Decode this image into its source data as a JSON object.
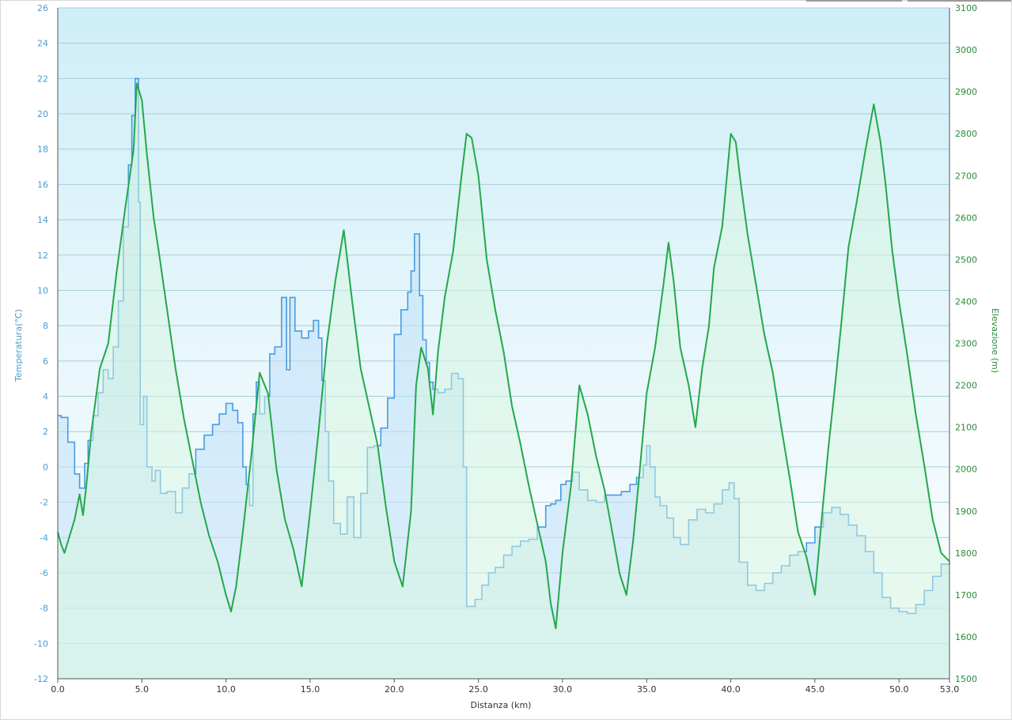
{
  "chart_data": {
    "type": "area",
    "xlabel": "Distanza  (km)",
    "ylabel_left": "Temperatura(°C)",
    "ylabel_right": "Elevazione (m)",
    "x_ticks": [
      "0.0",
      "5.0",
      "10.0",
      "15.0",
      "20.0",
      "25.0",
      "30.0",
      "35.0",
      "40.0",
      "45.0",
      "50.0",
      "53.0"
    ],
    "x_tick_values": [
      0,
      5,
      10,
      15,
      20,
      25,
      30,
      35,
      40,
      45,
      50,
      53
    ],
    "xlim": [
      0,
      53
    ],
    "ylim_left": [
      -12,
      26
    ],
    "ylim_right": [
      1500,
      3100
    ],
    "y_left_ticks": [
      "-12",
      "-10",
      "-8",
      "-6",
      "-4",
      "-2",
      "0",
      "2",
      "4",
      "6",
      "8",
      "10",
      "12",
      "14",
      "16",
      "18",
      "20",
      "22",
      "24",
      "26"
    ],
    "y_right_ticks": [
      "1500",
      "1600",
      "1700",
      "1800",
      "1900",
      "2000",
      "2100",
      "2200",
      "2300",
      "2400",
      "2500",
      "2600",
      "2700",
      "2800",
      "2900",
      "3000",
      "3100"
    ],
    "grid": true,
    "colors": {
      "temperature": "#4a9be0",
      "temperature_fill": "#bfe0f8",
      "elevation": "#22a84a",
      "elevation_fill": "#d6f5e0",
      "bg_top": "#cfeef8",
      "bg_bottom": "#ffffff",
      "left_axis_text": "#4a9bd0",
      "right_axis_text": "#2a8a3a"
    },
    "series": [
      {
        "axis": "left",
        "x": [
          0,
          0.2,
          0.6,
          1.0,
          1.3,
          1.6,
          1.8,
          2.1,
          2.4,
          2.7,
          3.0,
          3.3,
          3.6,
          3.9,
          4.2,
          4.4,
          4.6,
          4.8,
          4.9,
          5.1,
          5.3,
          5.6,
          5.8,
          6.1,
          6.5,
          7.0,
          7.4,
          7.8,
          8.2,
          8.7,
          9.2,
          9.6,
          10.0,
          10.4,
          10.7,
          11.0,
          11.2,
          11.4,
          11.6,
          11.8,
          12.0,
          12.3,
          12.6,
          12.9,
          13.3,
          13.6,
          13.8,
          14.1,
          14.5,
          14.9,
          15.2,
          15.5,
          15.7,
          15.9,
          16.1,
          16.4,
          16.8,
          17.2,
          17.6,
          18.0,
          18.4,
          18.8,
          19.2,
          19.6,
          20.0,
          20.4,
          20.8,
          21.0,
          21.2,
          21.5,
          21.7,
          21.9,
          22.1,
          22.3,
          22.6,
          23.0,
          23.4,
          23.8,
          24.1,
          24.3,
          24.5,
          24.8,
          25.2,
          25.6,
          26.0,
          26.5,
          27.0,
          27.5,
          28.0,
          28.5,
          29.0,
          29.3,
          29.6,
          29.9,
          30.2,
          30.6,
          31.0,
          31.5,
          32.0,
          32.5,
          33.0,
          33.5,
          34.0,
          34.4,
          34.8,
          35.0,
          35.2,
          35.5,
          35.8,
          36.2,
          36.6,
          37.0,
          37.5,
          38.0,
          38.5,
          39.0,
          39.5,
          39.9,
          40.2,
          40.5,
          41.0,
          41.5,
          42.0,
          42.5,
          43.0,
          43.5,
          44.0,
          44.5,
          45.0,
          45.5,
          46.0,
          46.5,
          47.0,
          47.5,
          48.0,
          48.5,
          49.0,
          49.5,
          50.0,
          50.5,
          51.0,
          51.5,
          52.0,
          52.5,
          53.0
        ],
        "values": [
          2.9,
          2.8,
          1.4,
          -0.4,
          -1.2,
          0.2,
          1.5,
          2.9,
          4.2,
          5.5,
          5.0,
          6.8,
          9.4,
          13.6,
          17.1,
          19.9,
          22.0,
          15.0,
          2.4,
          4.0,
          0.0,
          -0.8,
          -0.2,
          -1.5,
          -1.4,
          -2.6,
          -1.2,
          -0.4,
          1.0,
          1.8,
          2.4,
          3.0,
          3.6,
          3.2,
          2.5,
          0.0,
          -1.0,
          -2.2,
          3.0,
          4.8,
          3.0,
          4.0,
          6.4,
          6.8,
          9.6,
          5.5,
          9.6,
          7.7,
          7.3,
          7.7,
          8.3,
          7.3,
          4.9,
          2.0,
          -0.8,
          -3.2,
          -3.8,
          -1.7,
          -4.0,
          -1.5,
          1.1,
          1.2,
          2.2,
          3.9,
          7.5,
          8.9,
          9.9,
          11.1,
          13.2,
          9.7,
          7.2,
          5.9,
          4.8,
          4.4,
          4.2,
          4.4,
          5.3,
          5.0,
          0.0,
          -7.9,
          -7.9,
          -7.5,
          -6.7,
          -6.0,
          -5.7,
          -5.0,
          -4.5,
          -4.2,
          -4.1,
          -3.4,
          -2.2,
          -2.1,
          -1.9,
          -1.0,
          -0.8,
          -0.3,
          -1.3,
          -1.9,
          -2.0,
          -1.6,
          -1.6,
          -1.4,
          -1.0,
          -0.6,
          0.1,
          1.2,
          0.0,
          -1.7,
          -2.2,
          -2.9,
          -4.0,
          -4.4,
          -3.0,
          -2.4,
          -2.6,
          -2.1,
          -1.3,
          -0.9,
          -1.8,
          -5.4,
          -6.7,
          -7.0,
          -6.6,
          -6.0,
          -5.6,
          -5.0,
          -4.8,
          -4.3,
          -3.4,
          -2.6,
          -2.3,
          -2.7,
          -3.3,
          -3.9,
          -4.8,
          -6.0,
          -7.4,
          -8.0,
          -8.2,
          -8.3,
          -7.8,
          -7.0,
          -6.2,
          -5.5,
          -5.4
        ]
      },
      {
        "axis": "right",
        "x": [
          0,
          0.2,
          0.4,
          0.7,
          1.0,
          1.3,
          1.5,
          1.7,
          2.0,
          2.5,
          3.0,
          3.5,
          4.0,
          4.5,
          4.7,
          5.0,
          5.3,
          5.7,
          6.0,
          6.5,
          7.0,
          7.5,
          8.0,
          8.5,
          9.0,
          9.5,
          10.0,
          10.3,
          10.6,
          11.0,
          11.5,
          12.0,
          12.5,
          13.0,
          13.5,
          14.0,
          14.5,
          15.0,
          15.5,
          16.0,
          16.5,
          17.0,
          17.5,
          18.0,
          18.5,
          19.0,
          19.5,
          20.0,
          20.5,
          21.0,
          21.3,
          21.6,
          22.0,
          22.3,
          22.6,
          23.0,
          23.5,
          24.0,
          24.3,
          24.6,
          25.0,
          25.5,
          26.0,
          26.5,
          27.0,
          27.5,
          28.0,
          28.5,
          29.0,
          29.3,
          29.6,
          30.0,
          30.5,
          31.0,
          31.5,
          32.0,
          32.5,
          33.0,
          33.4,
          33.8,
          34.2,
          34.6,
          35.0,
          35.5,
          36.0,
          36.3,
          36.6,
          37.0,
          37.5,
          37.9,
          38.3,
          38.7,
          39.0,
          39.5,
          40.0,
          40.3,
          40.6,
          41.0,
          41.5,
          42.0,
          42.5,
          43.0,
          43.5,
          44.0,
          44.5,
          45.0,
          45.4,
          45.8,
          46.2,
          46.6,
          47.0,
          47.5,
          48.0,
          48.5,
          48.9,
          49.2,
          49.6,
          50.0,
          50.5,
          51.0,
          51.5,
          52.0,
          52.5,
          53.0
        ],
        "values": [
          1850,
          1820,
          1800,
          1840,
          1880,
          1940,
          1890,
          1960,
          2090,
          2240,
          2300,
          2470,
          2620,
          2760,
          2920,
          2880,
          2750,
          2600,
          2520,
          2380,
          2240,
          2120,
          2020,
          1920,
          1840,
          1780,
          1700,
          1660,
          1720,
          1850,
          2030,
          2230,
          2180,
          2000,
          1880,
          1810,
          1720,
          1900,
          2090,
          2300,
          2450,
          2570,
          2400,
          2240,
          2150,
          2060,
          1910,
          1780,
          1720,
          1900,
          2200,
          2290,
          2240,
          2130,
          2280,
          2410,
          2520,
          2700,
          2800,
          2790,
          2700,
          2500,
          2380,
          2280,
          2150,
          2060,
          1960,
          1870,
          1780,
          1680,
          1620,
          1800,
          1960,
          2200,
          2130,
          2030,
          1950,
          1840,
          1750,
          1700,
          1830,
          2000,
          2180,
          2290,
          2440,
          2540,
          2450,
          2290,
          2200,
          2100,
          2240,
          2340,
          2480,
          2580,
          2800,
          2780,
          2680,
          2560,
          2440,
          2320,
          2230,
          2100,
          1980,
          1850,
          1790,
          1700,
          1880,
          2050,
          2200,
          2360,
          2530,
          2640,
          2760,
          2870,
          2780,
          2680,
          2520,
          2400,
          2270,
          2130,
          2010,
          1880,
          1800,
          1780
        ]
      }
    ]
  }
}
